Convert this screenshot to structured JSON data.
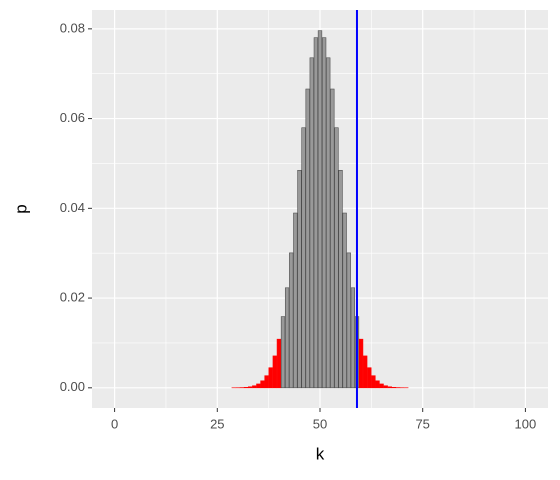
{
  "chart_data": {
    "type": "bar",
    "x_label": "k",
    "y_label": "p",
    "categories": [
      0,
      1,
      2,
      3,
      4,
      5,
      6,
      7,
      8,
      9,
      10,
      11,
      12,
      13,
      14,
      15,
      16,
      17,
      18,
      19,
      20,
      21,
      22,
      23,
      24,
      25,
      26,
      27,
      28,
      29,
      30,
      31,
      32,
      33,
      34,
      35,
      36,
      37,
      38,
      39,
      40,
      41,
      42,
      43,
      44,
      45,
      46,
      47,
      48,
      49,
      50,
      51,
      52,
      53,
      54,
      55,
      56,
      57,
      58,
      59,
      60,
      61,
      62,
      63,
      64,
      65,
      66,
      67,
      68,
      69,
      70,
      71,
      72,
      73,
      74,
      75,
      76,
      77,
      78,
      79,
      80,
      81,
      82,
      83,
      84,
      85,
      86,
      87,
      88,
      89,
      90,
      91,
      92,
      93,
      94,
      95,
      96,
      97,
      98,
      99,
      100
    ],
    "values": [
      0,
      0,
      0,
      0,
      0,
      0,
      0,
      0,
      0,
      0,
      0,
      0,
      0,
      0,
      0,
      0,
      0,
      0,
      0,
      0,
      0,
      0,
      0,
      0,
      0,
      0,
      0,
      0,
      0,
      1e-05,
      2e-05,
      5e-05,
      0.00011,
      0.00023,
      0.00046,
      0.00086,
      0.00156,
      0.0027,
      0.00448,
      0.00711,
      0.01084,
      0.01587,
      0.02229,
      0.03007,
      0.03895,
      0.04847,
      0.05796,
      0.06659,
      0.07355,
      0.07803,
      0.07959,
      0.07803,
      0.07355,
      0.06659,
      0.05796,
      0.04847,
      0.03895,
      0.03007,
      0.02229,
      0.01587,
      0.01084,
      0.00711,
      0.00448,
      0.0027,
      0.00156,
      0.00086,
      0.00046,
      0.00023,
      0.00011,
      5e-05,
      2e-05,
      1e-05,
      0,
      0,
      0,
      0,
      0,
      0,
      0,
      0,
      0,
      0,
      0,
      0,
      0,
      0,
      0,
      0,
      0,
      0,
      0,
      0,
      0,
      0,
      0,
      0,
      0,
      0,
      0,
      0,
      0
    ],
    "bar_colors": [
      "red",
      "red",
      "red",
      "red",
      "red",
      "red",
      "red",
      "red",
      "red",
      "red",
      "red",
      "red",
      "red",
      "red",
      "red",
      "red",
      "red",
      "red",
      "red",
      "red",
      "red",
      "red",
      "red",
      "red",
      "red",
      "red",
      "red",
      "red",
      "red",
      "red",
      "red",
      "red",
      "red",
      "red",
      "red",
      "red",
      "red",
      "red",
      "red",
      "red",
      "red",
      "#999999",
      "#999999",
      "#999999",
      "#999999",
      "#999999",
      "#999999",
      "#999999",
      "#999999",
      "#999999",
      "#999999",
      "#999999",
      "#999999",
      "#999999",
      "#999999",
      "#999999",
      "#999999",
      "#999999",
      "#999999",
      "#999999",
      "red",
      "red",
      "red",
      "red",
      "red",
      "red",
      "red",
      "red",
      "red",
      "red",
      "red",
      "red",
      "red",
      "red",
      "red",
      "red",
      "red",
      "red",
      "red",
      "red",
      "red",
      "red",
      "red",
      "red",
      "red",
      "red",
      "red",
      "red",
      "red",
      "red",
      "red",
      "red",
      "red",
      "red",
      "red",
      "red",
      "red",
      "red",
      "red",
      "red",
      "red"
    ],
    "outline_colors": {
      "red": "red",
      "#999999": "#4d4d4d"
    },
    "vline": {
      "x": 59,
      "color": "#0000ff"
    },
    "xlim": [
      -5.5,
      105.5
    ],
    "ylim": [
      -0.0045,
      0.0842
    ],
    "xticks": [
      0,
      25,
      50,
      75,
      100
    ],
    "xminorticks": [
      12.5,
      37.5,
      62.5,
      87.5
    ],
    "yticks": [
      {
        "value": 0,
        "label": "0.00"
      },
      0.02,
      0.04,
      0.06,
      0.08
    ],
    "yminorticks": [
      0.01,
      0.03,
      0.05,
      0.07
    ],
    "grid": true
  }
}
